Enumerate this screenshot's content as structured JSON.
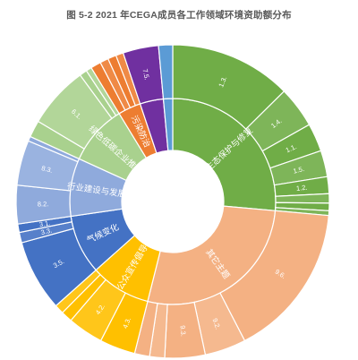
{
  "chart_data": {
    "type": "sunburst",
    "title": "图 5-2 2021 年CEGA成员各工作领域环境资助额分布",
    "categories": [
      {
        "name": "生态保护与修复",
        "color": "#70ad47",
        "children": [
          {
            "label": "1.3.",
            "value": 13
          },
          {
            "label": "1.4.",
            "value": 4.4
          },
          {
            "label": "1.1.",
            "value": 3.0
          },
          {
            "label": "1.5.",
            "value": 2.8
          },
          {
            "label": "1.2.",
            "value": 1.8
          },
          {
            "label": "",
            "value": 1.0
          },
          {
            "label": "",
            "value": 0.8
          },
          {
            "label": "",
            "value": 0.5
          }
        ]
      },
      {
        "name": "其它主题",
        "color": "#f4b183",
        "children": [
          {
            "label": "9.6.",
            "value": 16.5
          },
          {
            "label": "9.2.",
            "value": 4.4
          },
          {
            "label": "9.3.",
            "value": 4.3
          },
          {
            "label": "",
            "value": 1.6
          },
          {
            "label": "",
            "value": 1.6
          }
        ]
      },
      {
        "name": "公众宣传倡导",
        "color": "#ffc000",
        "children": [
          {
            "label": "4.3.",
            "value": 3.8
          },
          {
            "label": "4.2.",
            "value": 3.8
          },
          {
            "label": "",
            "value": 1.2
          },
          {
            "label": "",
            "value": 1.0
          }
        ]
      },
      {
        "name": "气候变化",
        "color": "#4472c4",
        "children": [
          {
            "label": "3.5.",
            "value": 7.6
          },
          {
            "label": "3.3.",
            "value": 1.1
          },
          {
            "label": "3.1.",
            "value": 0.9
          }
        ]
      },
      {
        "name": "行业建设与发展",
        "color": "#8faadc",
        "children": [
          {
            "label": "8.2.",
            "value": 4.1
          },
          {
            "label": "8.3.",
            "value": 4.8
          },
          {
            "label": "",
            "value": 0.5
          }
        ]
      },
      {
        "name": "绿色低碳企业推动",
        "color": "#a9d18e",
        "children": [
          {
            "label": "",
            "value": 1.8
          },
          {
            "label": "6.1.",
            "value": 6.6
          },
          {
            "label": "",
            "value": 0.8
          },
          {
            "label": "",
            "value": 0.6
          }
        ]
      },
      {
        "name": "污染防治",
        "color": "#ed7d31",
        "children": [
          {
            "label": "",
            "value": 1.1
          },
          {
            "label": "",
            "value": 0.9
          },
          {
            "label": "",
            "value": 0.9
          },
          {
            "label": "",
            "value": 0.8
          }
        ]
      },
      {
        "name": "",
        "color": "#7030a0",
        "children": [
          {
            "label": "7.5.",
            "value": 3.8
          }
        ]
      },
      {
        "name": "",
        "color": "#5b9bd5",
        "children": [
          {
            "label": "",
            "value": 1.5
          }
        ]
      }
    ]
  }
}
